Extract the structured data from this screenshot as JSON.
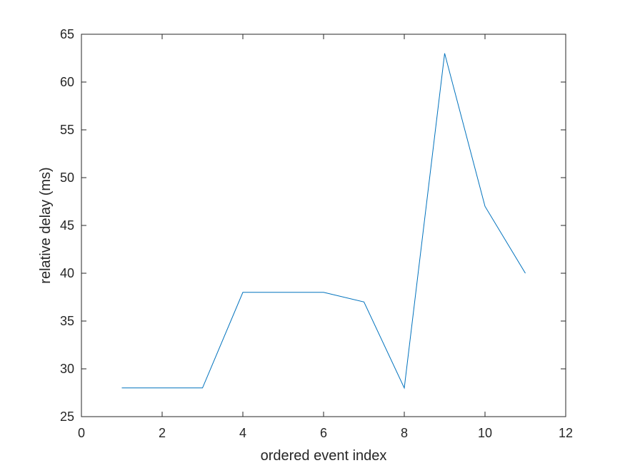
{
  "chart_data": {
    "type": "line",
    "title": "",
    "xlabel": "ordered event index",
    "ylabel": "relative delay (ms)",
    "xlim": [
      0,
      12
    ],
    "ylim": [
      25,
      65
    ],
    "xticks": [
      0,
      2,
      4,
      6,
      8,
      10,
      12
    ],
    "yticks": [
      25,
      30,
      35,
      40,
      45,
      50,
      55,
      60,
      65
    ],
    "grid": false,
    "legend": "none",
    "series": [
      {
        "color": "#0072BD",
        "x": [
          1,
          2,
          3,
          4,
          5,
          6,
          7,
          8,
          9,
          10,
          11
        ],
        "y": [
          28,
          28,
          28,
          38,
          38,
          38,
          37,
          28,
          63,
          47,
          40
        ]
      }
    ]
  }
}
